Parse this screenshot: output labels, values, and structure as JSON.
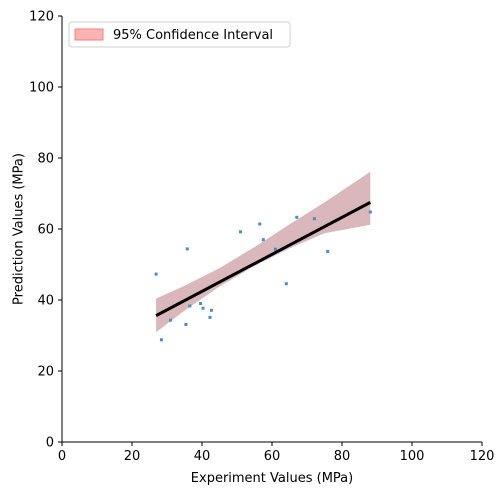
{
  "chart_data": {
    "type": "scatter",
    "xlabel": "Experiment Values (MPa)",
    "ylabel": "Prediction Values (MPa)",
    "xlim": [
      0,
      120
    ],
    "ylim": [
      0,
      120
    ],
    "xticks": [
      0,
      20,
      40,
      60,
      80,
      100,
      120
    ],
    "yticks": [
      0,
      20,
      40,
      60,
      80,
      100,
      120
    ],
    "grid": false,
    "legend": {
      "placement": "top-left",
      "entries": [
        "95% Confidence Interval"
      ]
    },
    "points": {
      "x": [
        26.9,
        28.4,
        31.0,
        35.4,
        35.8,
        36.5,
        39.6,
        40.3,
        42.3,
        42.7,
        51.0,
        56.5,
        57.5,
        61.0,
        64.1,
        67.1,
        72.1,
        75.9,
        88.1
      ],
      "y": [
        47.3,
        28.8,
        34.3,
        33.1,
        54.4,
        38.3,
        39.0,
        37.7,
        35.1,
        37.1,
        59.2,
        61.4,
        57.0,
        54.3,
        44.6,
        63.3,
        62.9,
        53.7,
        64.8
      ],
      "color": "#4c8cc6"
    },
    "fit_line": {
      "x": [
        26.9,
        88.1
      ],
      "y": [
        35.6,
        67.5
      ],
      "color": "#000000"
    },
    "confidence_band": {
      "x": [
        26.9,
        35,
        45,
        55,
        65,
        75,
        88.1
      ],
      "lower": [
        30.9,
        37.0,
        43.8,
        49.6,
        54.6,
        58.8,
        61.2
      ],
      "upper": [
        40.4,
        44.0,
        49.0,
        54.9,
        61.3,
        67.5,
        76.1
      ],
      "fill": "#d9b7ba",
      "legend_fill": "#ffb3b3",
      "legend_edge": "#f08080"
    }
  }
}
